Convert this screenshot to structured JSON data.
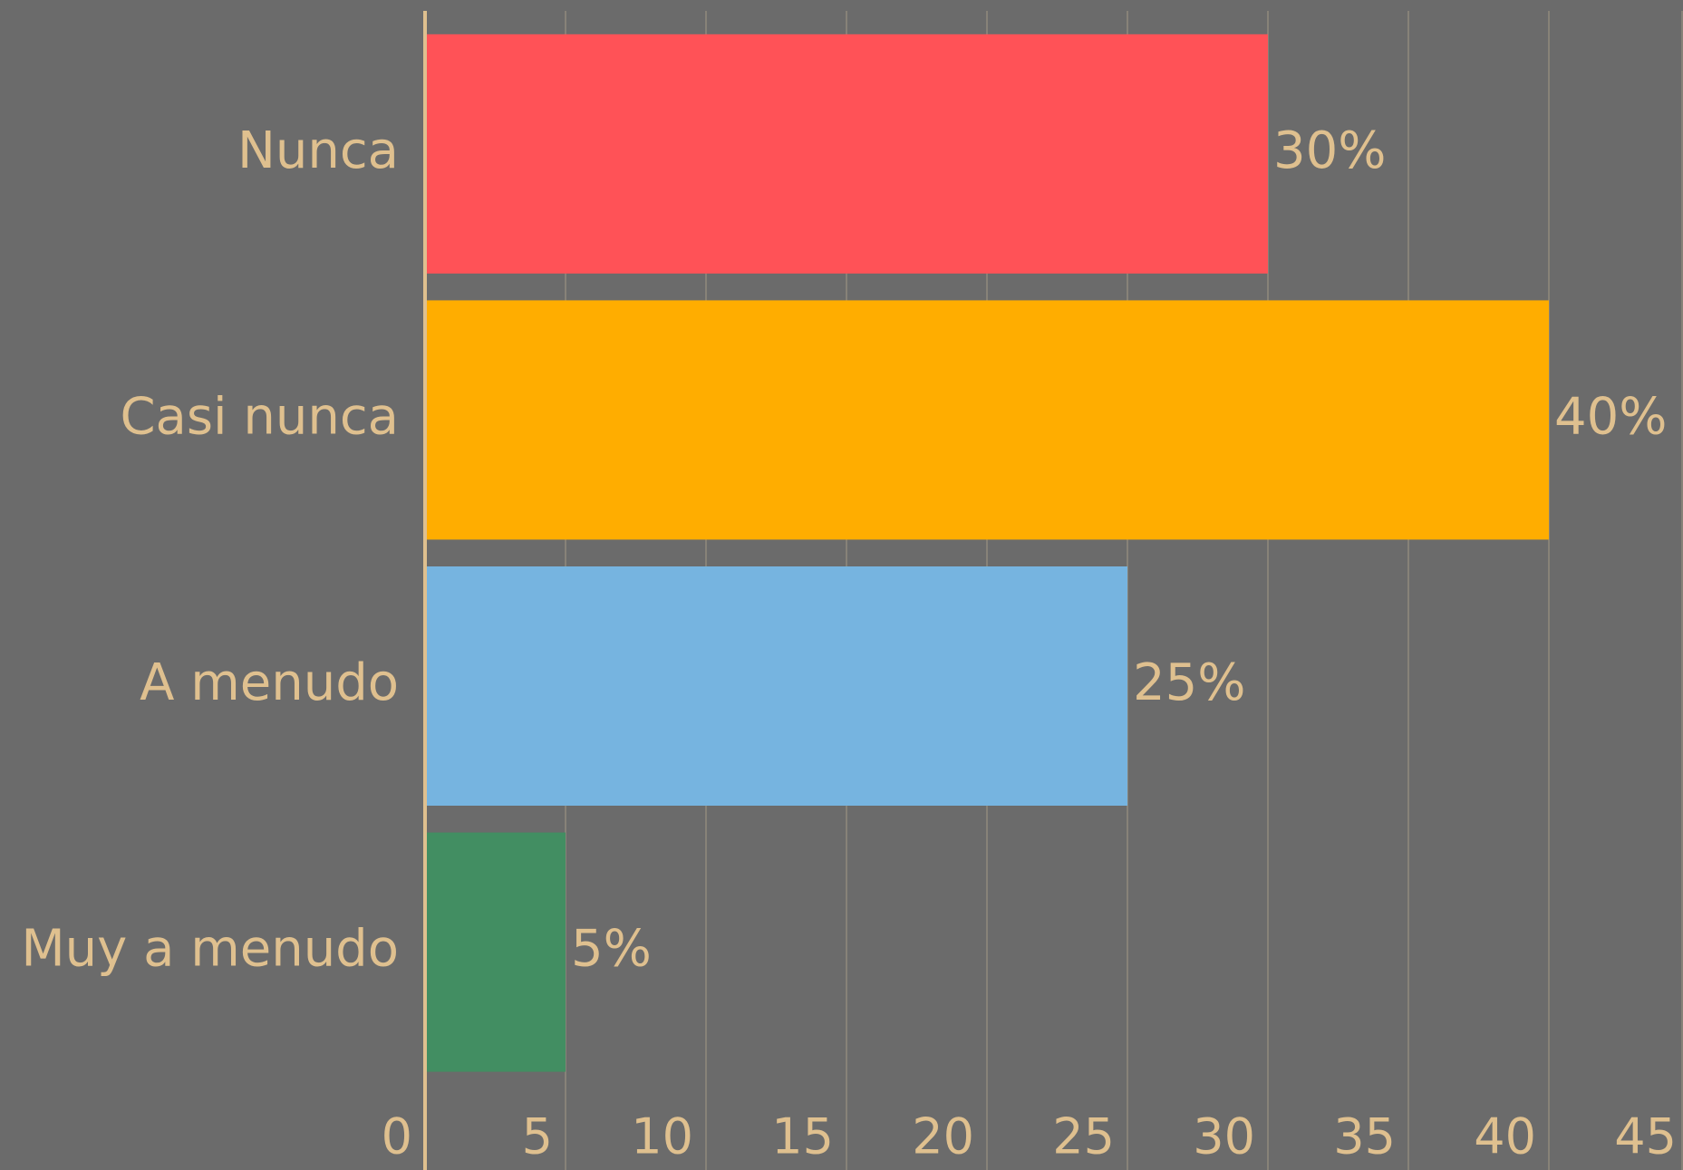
{
  "chart_data": {
    "type": "bar",
    "orientation": "horizontal",
    "categories": [
      "Nunca",
      "Casi nunca",
      "A menudo",
      "Muy a menudo"
    ],
    "values": [
      30,
      40,
      25,
      5
    ],
    "value_labels": [
      "30%",
      "40%",
      "25%",
      "5%"
    ],
    "colors": [
      "#ff5257",
      "#ffad00",
      "#76b4e0",
      "#428e62"
    ],
    "xlim": [
      0,
      45
    ],
    "xticks": [
      0,
      5,
      10,
      15,
      20,
      25,
      30,
      35,
      40,
      45
    ],
    "grid": true
  }
}
